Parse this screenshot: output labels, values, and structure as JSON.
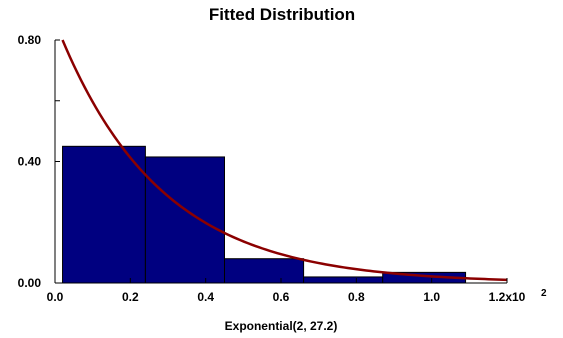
{
  "chart_data": {
    "type": "bar",
    "title": "Fitted Distribution",
    "xlabel": "Exponential(2, 27.2)",
    "ylabel": "",
    "x_scale_note": "x10^2",
    "x_tick_labels": [
      "0.0",
      "0.2",
      "0.4",
      "0.6",
      "0.8",
      "1.0",
      "1.2x10"
    ],
    "x_tick_values": [
      0.0,
      0.2,
      0.4,
      0.6,
      0.8,
      1.0,
      1.2
    ],
    "x_exponent_label": "2",
    "y_tick_labels": [
      "0.00",
      "0.40",
      "0.80"
    ],
    "y_tick_values": [
      0.0,
      0.4,
      0.8
    ],
    "xlim": [
      0.0,
      1.2
    ],
    "ylim": [
      0.0,
      0.8
    ],
    "grid": false,
    "bins": [
      {
        "x0": 0.02,
        "x1": 0.24,
        "value": 0.45
      },
      {
        "x0": 0.24,
        "x1": 0.45,
        "value": 0.415
      },
      {
        "x0": 0.45,
        "x1": 0.66,
        "value": 0.08
      },
      {
        "x0": 0.66,
        "x1": 0.87,
        "value": 0.02
      },
      {
        "x0": 0.87,
        "x1": 1.09,
        "value": 0.035
      }
    ],
    "fitted_curve": {
      "distribution": "exponential",
      "location": 0.02,
      "mean": 0.272,
      "peak_density": 0.8,
      "x_end": 1.2
    },
    "colors": {
      "bar_fill": "#000080",
      "bar_edge": "#000000",
      "curve": "#8b0000",
      "axis": "#000000"
    }
  }
}
